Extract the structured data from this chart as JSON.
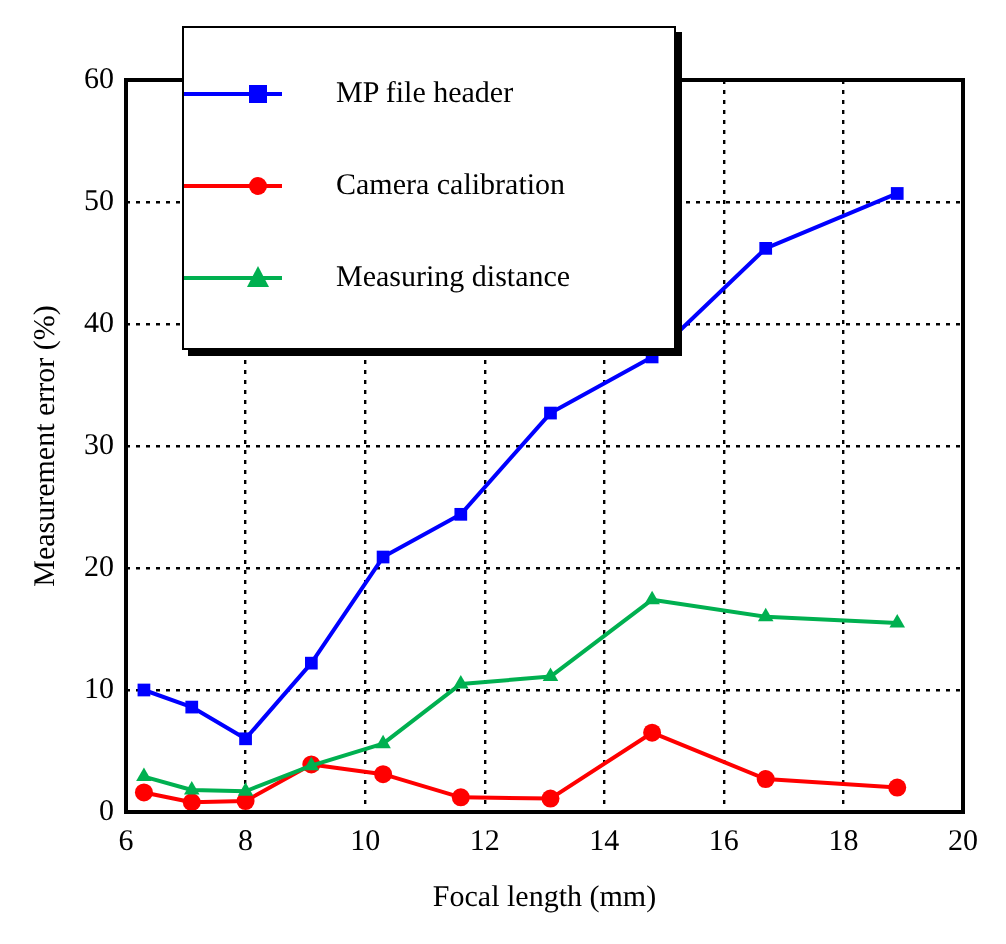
{
  "chart_data": {
    "type": "line",
    "xlabel": "Focal length (mm)",
    "ylabel": "Measurement error (%)",
    "x": [
      6.3,
      7.1,
      8.0,
      9.1,
      10.3,
      11.6,
      13.1,
      14.8,
      16.7,
      18.9
    ],
    "series": [
      {
        "name": "MP file header",
        "color": "#0000ff",
        "marker": "square",
        "values": [
          10.0,
          8.6,
          6.0,
          12.2,
          20.9,
          24.4,
          32.7,
          37.3,
          46.2,
          50.7
        ]
      },
      {
        "name": "Camera calibration",
        "color": "#ff0000",
        "marker": "circle",
        "values": [
          1.6,
          0.8,
          0.9,
          3.9,
          3.1,
          1.2,
          1.1,
          6.5,
          2.7,
          2.0
        ]
      },
      {
        "name": "Measuring distance",
        "color": "#00b050",
        "marker": "triangle",
        "values": [
          2.9,
          1.8,
          1.7,
          3.8,
          5.6,
          10.5,
          11.1,
          17.4,
          16.0,
          15.5
        ]
      }
    ],
    "xlim": [
      6,
      20
    ],
    "xticks": [
      6,
      8,
      10,
      12,
      14,
      16,
      18,
      20
    ],
    "ylim": [
      0,
      60
    ],
    "yticks": [
      0,
      10,
      20,
      30,
      40,
      50,
      60
    ],
    "grid": true,
    "legend": "top left",
    "line_style": "solid"
  }
}
